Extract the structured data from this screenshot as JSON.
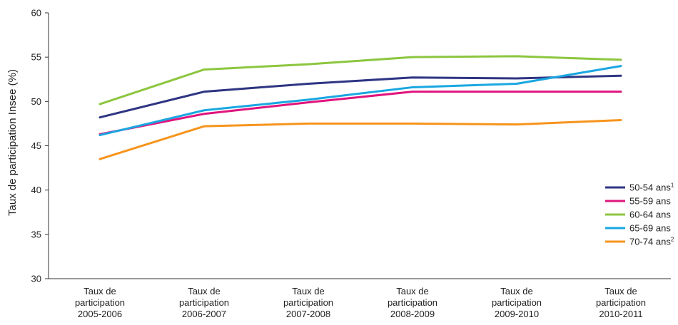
{
  "chart_data": {
    "type": "line",
    "title": "",
    "xlabel": "",
    "ylabel": "Taux de participation Insee (%)",
    "ylim": [
      30,
      60
    ],
    "yticks": [
      30,
      35,
      40,
      45,
      50,
      55,
      60
    ],
    "grid": false,
    "legend_position": "right",
    "categories": [
      [
        "Taux de",
        "participation",
        "2005-2006"
      ],
      [
        "Taux de",
        "participation",
        "2006-2007"
      ],
      [
        "Taux de",
        "participation",
        "2007-2008"
      ],
      [
        "Taux de",
        "participation",
        "2008-2009"
      ],
      [
        "Taux de",
        "participation",
        "2009-2010"
      ],
      [
        "Taux de",
        "participation",
        "2010-2011"
      ]
    ],
    "series": [
      {
        "name": "50-54 ans",
        "sup": "1",
        "color": "#2e3583",
        "values": [
          48.2,
          51.1,
          52.0,
          52.7,
          52.6,
          52.9
        ]
      },
      {
        "name": "55-59 ans",
        "sup": "",
        "color": "#e0147d",
        "values": [
          46.3,
          48.6,
          49.9,
          51.1,
          51.1,
          51.1
        ]
      },
      {
        "name": "60-64 ans",
        "sup": "",
        "color": "#8cc63f",
        "values": [
          49.7,
          53.6,
          54.2,
          55.0,
          55.1,
          54.7
        ]
      },
      {
        "name": "65-69 ans",
        "sup": "",
        "color": "#1aa7e1",
        "values": [
          46.2,
          49.0,
          50.2,
          51.6,
          52.0,
          54.0
        ]
      },
      {
        "name": "70-74 ans",
        "sup": "2",
        "color": "#f7941d",
        "values": [
          43.5,
          47.2,
          47.5,
          47.5,
          47.4,
          47.9
        ]
      }
    ]
  }
}
